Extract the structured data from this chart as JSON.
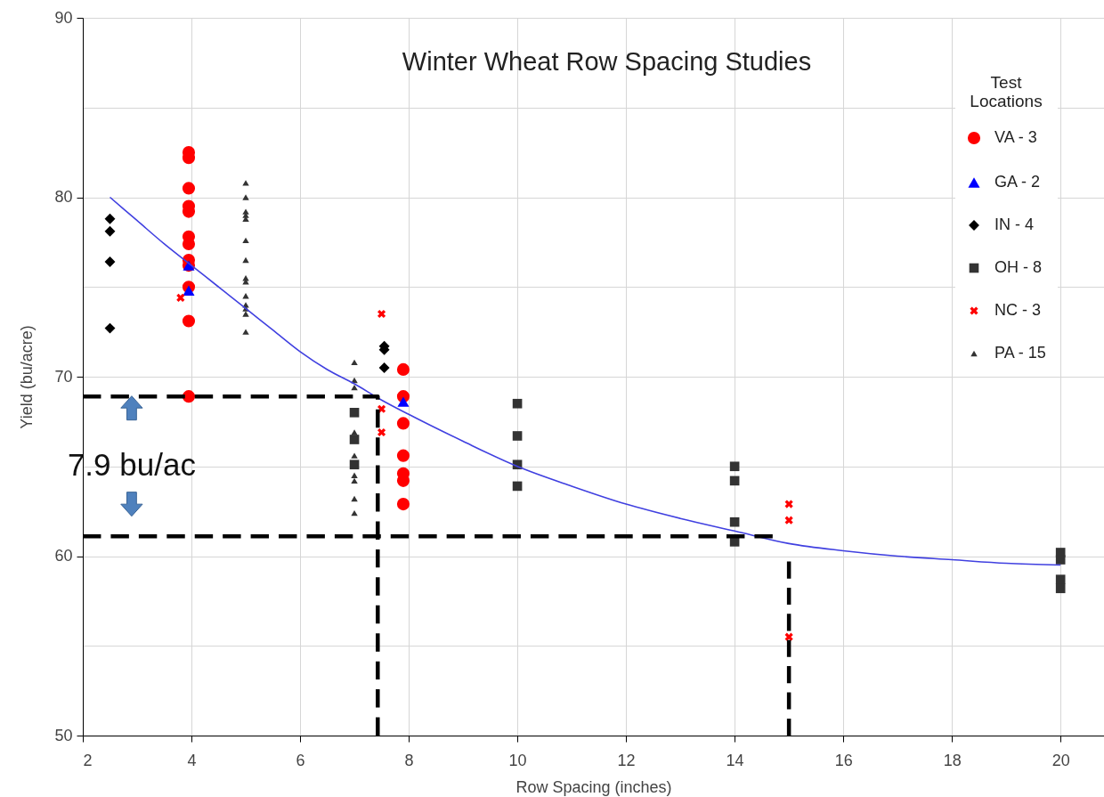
{
  "chart_data": {
    "type": "scatter",
    "title": "Winter Wheat Row Spacing Studies",
    "xlabel": "Row Spacing (inches)",
    "ylabel": "Yield (bu/acre)",
    "legend_title": "Test Locations",
    "legend": "top right",
    "grid": true,
    "xlim": [
      2,
      20.8
    ],
    "xticks": [
      2,
      4,
      6,
      8,
      10,
      12,
      14,
      16,
      18,
      20
    ],
    "ylim": [
      50,
      90
    ],
    "yticks": [
      50,
      {
        "value": 55,
        "label": null
      },
      60,
      {
        "value": 65,
        "label": null
      },
      70,
      {
        "value": 75,
        "label": null
      },
      80,
      {
        "value": 85,
        "label": null
      },
      90
    ],
    "annotations": [
      {
        "text": "7.9 bu/ac",
        "x": 2.9,
        "y": 68.9
      }
    ],
    "series": [
      {
        "name": "VA - 3",
        "marker": "circle",
        "color": "#ff0000",
        "x": [
          3.95,
          3.95,
          3.95,
          3.95,
          3.95,
          3.95,
          3.95,
          3.95,
          3.95,
          3.95,
          3.95,
          3.95,
          7.9,
          7.9,
          7.9,
          7.9,
          7.9,
          7.9,
          7.9
        ],
        "values": [
          82.5,
          82.2,
          80.5,
          79.5,
          79.2,
          77.8,
          77.4,
          76.5,
          76.2,
          75.0,
          73.1,
          68.9,
          70.4,
          68.9,
          67.4,
          65.6,
          64.6,
          64.2,
          62.9
        ]
      },
      {
        "name": "GA - 2",
        "marker": "triangle",
        "color": "#0000ff",
        "x": [
          3.95,
          3.95,
          7.9
        ],
        "values": [
          76.2,
          74.8,
          68.6
        ]
      },
      {
        "name": "IN - 4",
        "marker": "diamond",
        "color": "#000000",
        "x": [
          2.5,
          2.5,
          2.5,
          2.5,
          7.55,
          7.55,
          7.55
        ],
        "values": [
          78.8,
          78.1,
          76.4,
          72.7,
          71.7,
          71.5,
          70.5
        ]
      },
      {
        "name": "OH - 8",
        "marker": "square",
        "color": "#333333",
        "x": [
          7,
          7,
          7,
          10,
          10,
          10,
          10,
          14,
          14,
          14,
          14,
          20,
          20,
          20,
          20
        ],
        "values": [
          68.0,
          66.5,
          65.1,
          68.5,
          66.7,
          65.1,
          63.9,
          65.0,
          64.2,
          61.9,
          60.8,
          60.2,
          59.8,
          58.7,
          58.2
        ]
      },
      {
        "name": "NC - 3",
        "marker": "cross",
        "color": "#ff0000",
        "x": [
          3.8,
          7.5,
          7.5,
          7.5,
          15,
          15,
          15
        ],
        "values": [
          74.4,
          73.5,
          68.2,
          66.9,
          62.9,
          62.0,
          55.5
        ]
      },
      {
        "name": "PA - 15",
        "marker": "triangle",
        "color": "#333333",
        "x": [
          5,
          5,
          5,
          5,
          5,
          5,
          5,
          5,
          5,
          5,
          5,
          5,
          5,
          5,
          7,
          7,
          7,
          7,
          7,
          7,
          7,
          7,
          7
        ],
        "values": [
          80.8,
          80.0,
          79.2,
          79.0,
          78.8,
          77.6,
          76.5,
          75.5,
          75.3,
          74.5,
          74.0,
          73.8,
          73.5,
          72.5,
          70.8,
          69.8,
          69.4,
          66.9,
          65.6,
          64.5,
          64.2,
          63.2,
          62.4
        ]
      },
      {
        "type": "line",
        "color": "#4040e0",
        "marker": "none",
        "line_style": "solid",
        "x": [
          2.5,
          3,
          3.5,
          4,
          4.5,
          5,
          5.5,
          6,
          6.5,
          7,
          7.5,
          8,
          9,
          10,
          11,
          12,
          13,
          14,
          15,
          16,
          17,
          18,
          19,
          20
        ],
        "values": [
          80.0,
          78.7,
          77.4,
          76.2,
          75.0,
          73.8,
          72.6,
          71.4,
          70.4,
          69.6,
          68.7,
          67.9,
          66.4,
          65.0,
          63.9,
          62.9,
          62.1,
          61.4,
          60.7,
          60.3,
          60.0,
          59.8,
          59.6,
          59.5
        ]
      },
      {
        "type": "line",
        "color": "#000000",
        "marker": "none",
        "line_style": "dashed",
        "x": [
          2,
          7.43,
          7.43
        ],
        "values": [
          68.9,
          68.9,
          50
        ]
      },
      {
        "type": "line",
        "color": "#000000",
        "marker": "none",
        "line_style": "dashed",
        "x": [
          2,
          14.7
        ],
        "values": [
          61.1,
          61.1
        ]
      },
      {
        "type": "line",
        "color": "#000000",
        "marker": "none",
        "line_style": "dashed",
        "x": [
          15,
          15
        ],
        "values": [
          59.7,
          50
        ]
      }
    ]
  }
}
